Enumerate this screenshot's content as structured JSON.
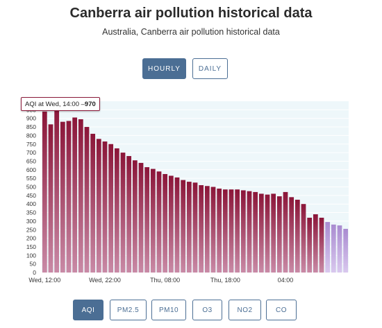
{
  "page": {
    "title": "Canberra air pollution historical data",
    "subtitle": "Australia, Canberra air pollution historical data"
  },
  "toggles": [
    {
      "label": "HOURLY",
      "active": true
    },
    {
      "label": "DAILY",
      "active": false
    }
  ],
  "pollutants": [
    {
      "label": "AQI",
      "active": true
    },
    {
      "label": "PM2.5",
      "active": false
    },
    {
      "label": "PM10",
      "active": false
    },
    {
      "label": "O3",
      "active": false
    },
    {
      "label": "NO2",
      "active": false
    },
    {
      "label": "CO",
      "active": false
    }
  ],
  "tooltip": {
    "prefix": "AQI at Wed, 14:00 – ",
    "value": "970"
  },
  "colors": {
    "accent": "#4b6e94",
    "bar_top": "#8b1538",
    "bar_bottom": "#c98aa6",
    "bar_forecast_top": "#a98bd0",
    "bar_forecast_bottom": "#d9c8ee",
    "plot_bg": "#eef7fa"
  },
  "chart_data": {
    "type": "bar",
    "ylim": [
      0,
      1000
    ],
    "yticks": [
      0,
      50,
      100,
      150,
      200,
      250,
      300,
      350,
      400,
      450,
      500,
      550,
      600,
      650,
      700,
      750,
      800,
      850,
      900,
      950
    ],
    "xticks": [
      {
        "label": "Wed, 12:00",
        "index": 0
      },
      {
        "label": "Wed, 22:00",
        "index": 10
      },
      {
        "label": "Thu, 08:00",
        "index": 20
      },
      {
        "label": "Thu, 18:00",
        "index": 30
      },
      {
        "label": "04:00",
        "index": 40
      }
    ],
    "values": [
      940,
      865,
      970,
      880,
      885,
      905,
      895,
      850,
      810,
      780,
      765,
      750,
      725,
      700,
      680,
      655,
      640,
      615,
      605,
      590,
      575,
      565,
      555,
      540,
      530,
      525,
      510,
      505,
      500,
      490,
      485,
      485,
      485,
      480,
      475,
      470,
      460,
      455,
      460,
      445,
      470,
      440,
      425,
      400,
      320,
      340,
      320,
      295,
      280,
      275,
      255
    ],
    "forecast_from_index": 47,
    "highlight_index": 2,
    "grid": true
  }
}
